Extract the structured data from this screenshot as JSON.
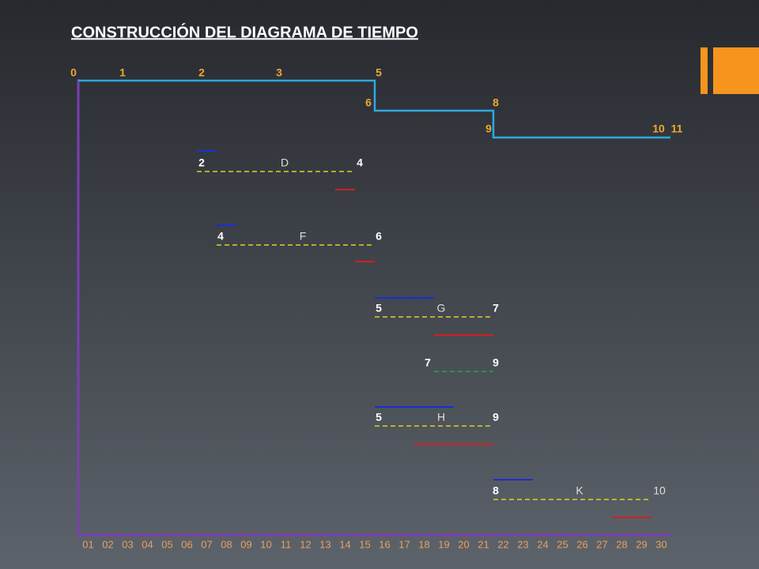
{
  "title": "CONSTRUCCIÓN DEL DIAGRAMA DE TIEMPO",
  "critical_path_labels": [
    "0",
    "1",
    "2",
    "3",
    "5",
    "6",
    "8",
    "9",
    "10",
    "11"
  ],
  "activities": [
    {
      "start": "2",
      "name": "D",
      "end": "4"
    },
    {
      "start": "4",
      "name": "F",
      "end": "6"
    },
    {
      "start": "5",
      "name": "G",
      "end": "7"
    },
    {
      "start": "7",
      "end": "9"
    },
    {
      "start": "5",
      "name": "H",
      "end": "9"
    },
    {
      "start": "8",
      "name": "K",
      "end": "10"
    }
  ],
  "days": [
    "01",
    "02",
    "03",
    "04",
    "05",
    "06",
    "07",
    "08",
    "09",
    "10",
    "11",
    "12",
    "13",
    "14",
    "15",
    "16",
    "17",
    "18",
    "19",
    "20",
    "21",
    "22",
    "23",
    "24",
    "25",
    "26",
    "27",
    "28",
    "29",
    "30"
  ]
}
